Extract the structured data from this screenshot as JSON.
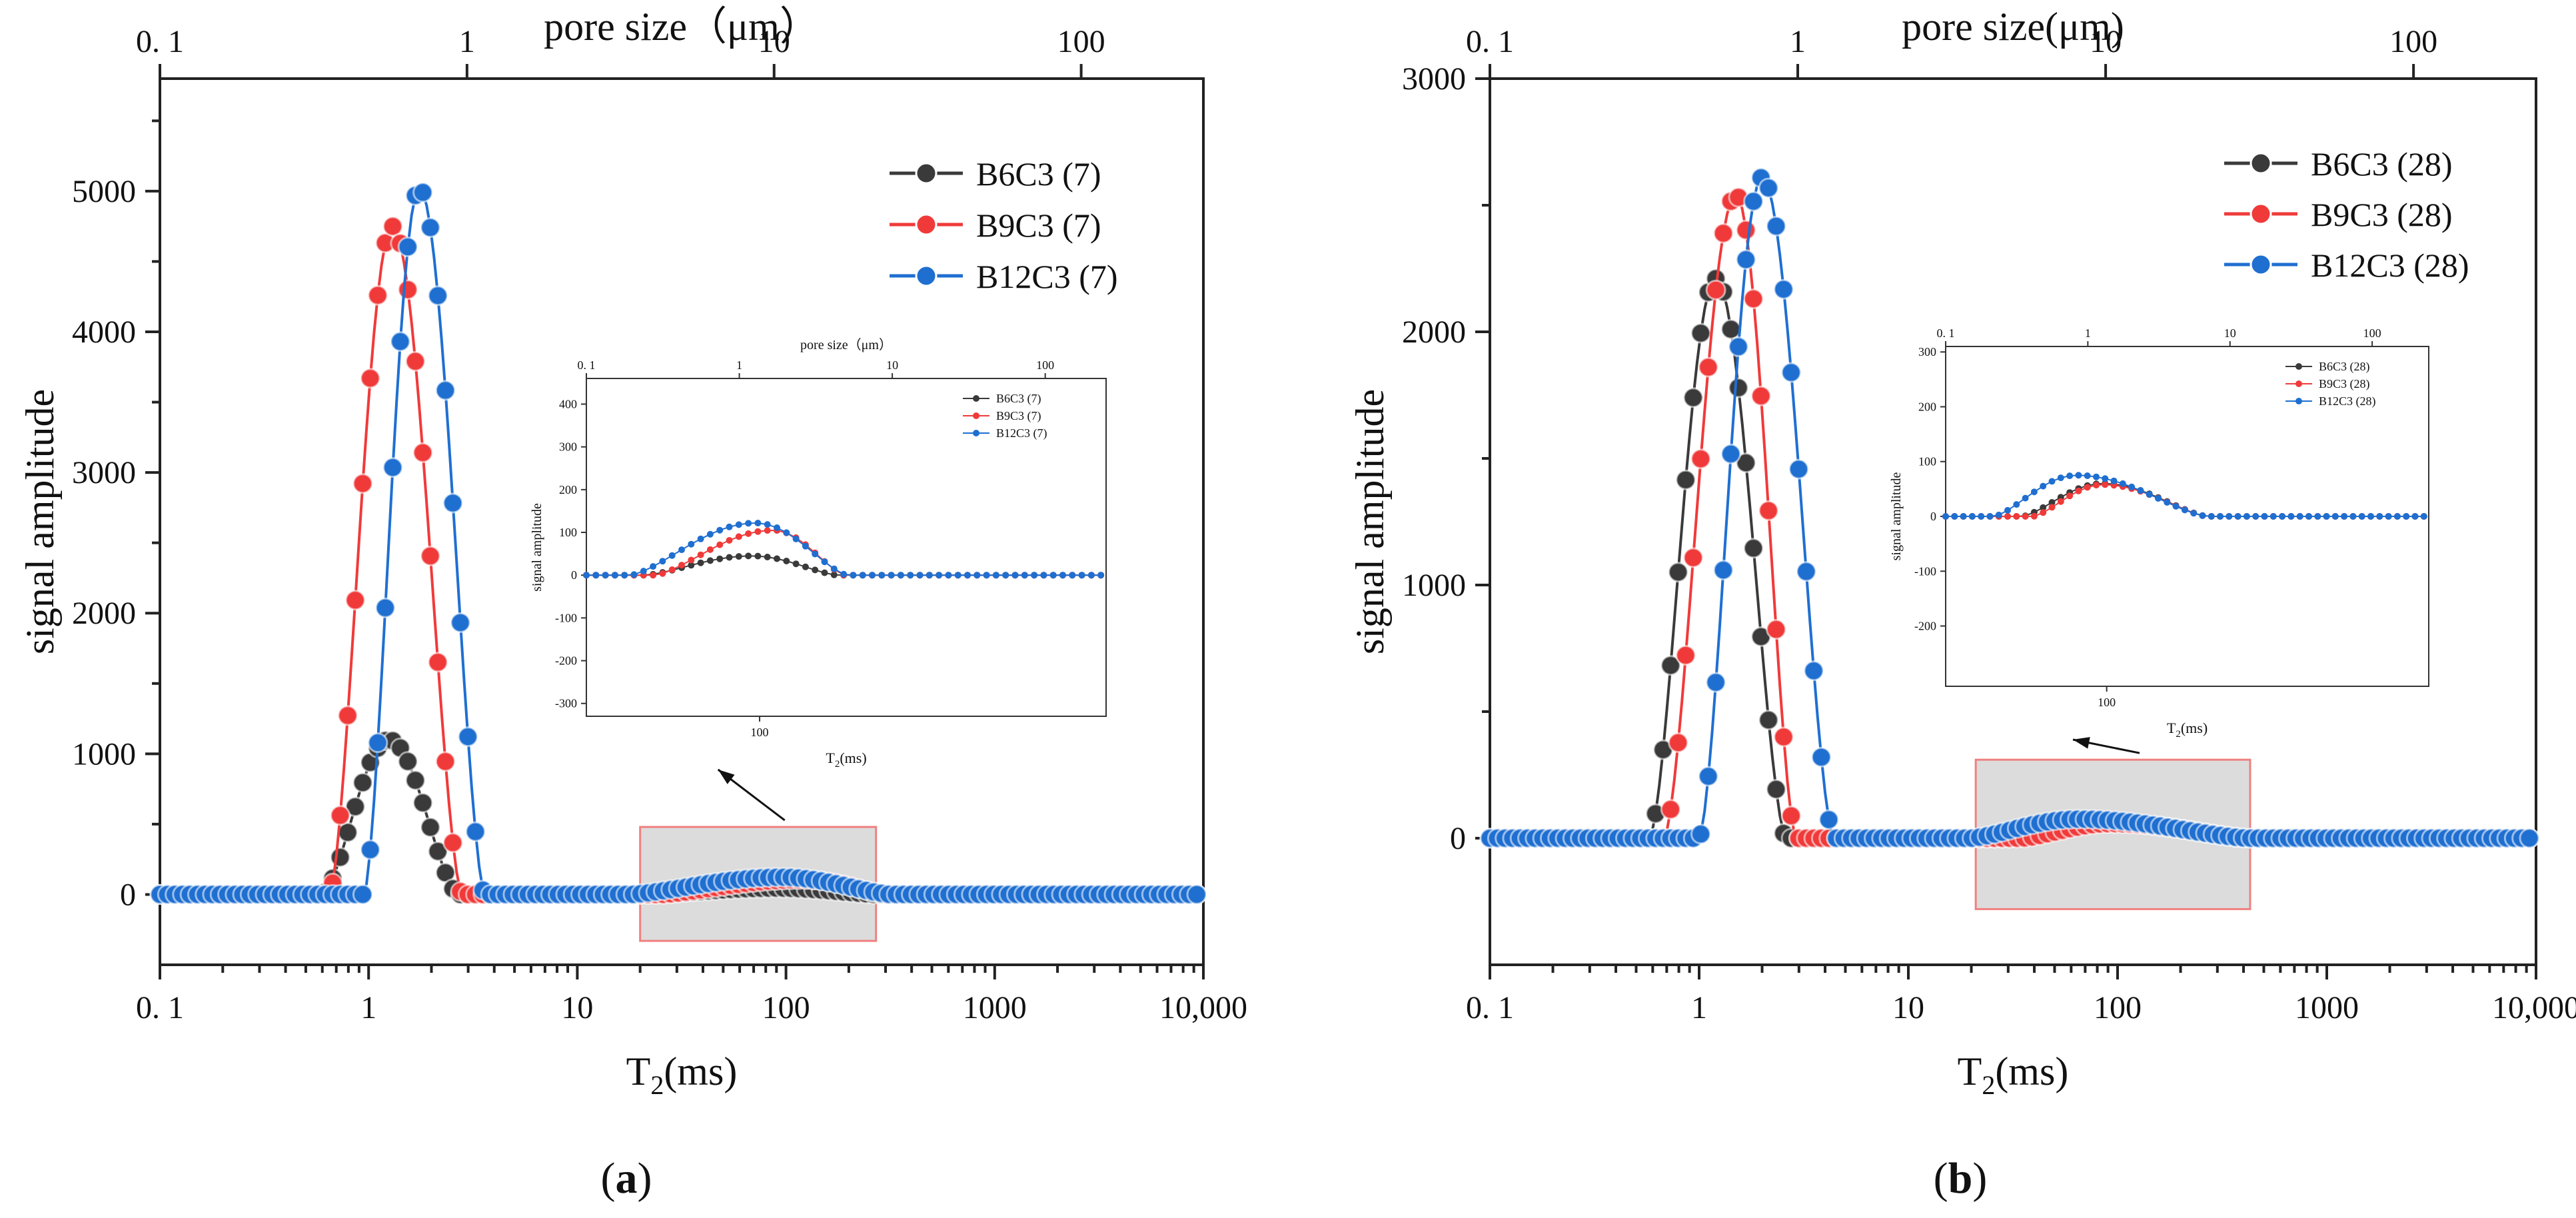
{
  "colors": {
    "B6": "#3a3a3a",
    "B9": "#f03a3a",
    "B12": "#1f6fd1",
    "box_fill": "#dcdcdc",
    "box_stroke": "#f08080"
  },
  "chart_data": [
    {
      "panel": "(a)",
      "panel_label": "a",
      "type": "scatter",
      "title": "",
      "xlabel": "T",
      "xlabel_sub": "2",
      "xlabel_suffix": "(ms)",
      "ylabel": "signal amplitude",
      "top_label": "pore size（μm）",
      "xscale": "log",
      "xlim": [
        0.1,
        10000
      ],
      "ylim": [
        -500,
        5800
      ],
      "top_xlim": [
        0.1,
        250
      ],
      "x_ticks": [
        {
          "value": 0.1,
          "label": "0. 1"
        },
        {
          "value": 1,
          "label": "1"
        },
        {
          "value": 10,
          "label": "10"
        },
        {
          "value": 100,
          "label": "100"
        },
        {
          "value": 1000,
          "label": "1000"
        },
        {
          "value": 10000,
          "label": "10,000"
        }
      ],
      "y_ticks": [
        {
          "value": 0,
          "label": "0"
        },
        {
          "value": 1000,
          "label": "1000"
        },
        {
          "value": 2000,
          "label": "2000"
        },
        {
          "value": 3000,
          "label": "3000"
        },
        {
          "value": 4000,
          "label": "4000"
        },
        {
          "value": 5000,
          "label": "5000"
        }
      ],
      "top_ticks": [
        {
          "value": 0.1,
          "label": "0. 1"
        },
        {
          "value": 1,
          "label": "1"
        },
        {
          "value": 10,
          "label": "10"
        },
        {
          "value": 100,
          "label": "100"
        }
      ],
      "legend_position": "top-right",
      "series": [
        {
          "name": "B6C3 (7)",
          "color_key": "B6",
          "peak_t2": 1.25,
          "peak_amp": 1100,
          "start_t2": 0.6,
          "end_t2": 2.7,
          "tail_peak_t2": 90,
          "tail_amp": 45,
          "tail_start_t2": 22,
          "tail_end_t2": 280
        },
        {
          "name": "B9C3 (7)",
          "color_key": "B9",
          "peak_t2": 1.3,
          "peak_amp": 4750,
          "start_t2": 0.65,
          "end_t2": 2.8,
          "tail_peak_t2": 120,
          "tail_amp": 105,
          "tail_start_t2": 25,
          "tail_end_t2": 310
        },
        {
          "name": "B12C3 (7)",
          "color_key": "B12",
          "peak_t2": 1.75,
          "peak_amp": 5020,
          "start_t2": 0.95,
          "end_t2": 3.6,
          "tail_peak_t2": 95,
          "tail_amp": 122,
          "tail_start_t2": 18,
          "tail_end_t2": 320
        }
      ],
      "zoom_box": {
        "x": [
          20,
          270
        ],
        "y": [
          -330,
          480
        ]
      },
      "inset": {
        "top_label": "pore size（μm）",
        "ylabel": "signal amplitude",
        "xlabel": "T",
        "xlabel_sub": "2",
        "xlabel_suffix": "(ms)",
        "xlim": [
          10,
          10000
        ],
        "ylim": [
          -330,
          460
        ],
        "top_xlim": [
          0.1,
          250
        ],
        "x_ticks": [
          {
            "value": 100,
            "label": "100"
          }
        ],
        "top_ticks": [
          {
            "value": 0.1,
            "label": "0. 1"
          },
          {
            "value": 1,
            "label": "1"
          },
          {
            "value": 10,
            "label": "10"
          },
          {
            "value": 100,
            "label": "100"
          }
        ],
        "y_ticks": [
          {
            "value": -300,
            "label": "-300"
          },
          {
            "value": -200,
            "label": "-200"
          },
          {
            "value": -100,
            "label": "-100"
          },
          {
            "value": 0,
            "label": "0"
          },
          {
            "value": 100,
            "label": "100"
          },
          {
            "value": 200,
            "label": "200"
          },
          {
            "value": 300,
            "label": "300"
          },
          {
            "value": 400,
            "label": "400"
          }
        ]
      }
    },
    {
      "panel": "(b)",
      "panel_label": "b",
      "type": "scatter",
      "title": "",
      "xlabel": "T",
      "xlabel_sub": "2",
      "xlabel_suffix": "(ms)",
      "ylabel": "signal amplitude",
      "top_label": "pore size(μm)",
      "xscale": "log",
      "xlim": [
        0.1,
        10000
      ],
      "ylim": [
        -500,
        3000
      ],
      "top_xlim": [
        0.1,
        250
      ],
      "x_ticks": [
        {
          "value": 0.1,
          "label": "0. 1"
        },
        {
          "value": 1,
          "label": "1"
        },
        {
          "value": 10,
          "label": "10"
        },
        {
          "value": 100,
          "label": "100"
        },
        {
          "value": 1000,
          "label": "1000"
        },
        {
          "value": 10000,
          "label": "10,000"
        }
      ],
      "y_ticks": [
        {
          "value": 0,
          "label": "0"
        },
        {
          "value": 1000,
          "label": "1000"
        },
        {
          "value": 2000,
          "label": "2000"
        },
        {
          "value": 3000,
          "label": "3000"
        }
      ],
      "top_ticks": [
        {
          "value": 0.1,
          "label": "0. 1"
        },
        {
          "value": 1,
          "label": "1"
        },
        {
          "value": 10,
          "label": "10"
        },
        {
          "value": 100,
          "label": "100"
        }
      ],
      "legend_position": "top-right",
      "series": [
        {
          "name": "B6C3 (28)",
          "color_key": "B6",
          "peak_t2": 1.2,
          "peak_amp": 2210,
          "start_t2": 0.58,
          "end_t2": 2.6,
          "tail_peak_t2": 95,
          "tail_amp": 60,
          "tail_start_t2": 30,
          "tail_end_t2": 420
        },
        {
          "name": "B9C3 (28)",
          "color_key": "B9",
          "peak_t2": 1.5,
          "peak_amp": 2540,
          "start_t2": 0.68,
          "end_t2": 2.9,
          "tail_peak_t2": 95,
          "tail_amp": 58,
          "tail_start_t2": 35,
          "tail_end_t2": 420
        },
        {
          "name": "B12C3 (28)",
          "color_key": "B12",
          "peak_t2": 2.0,
          "peak_amp": 2610,
          "start_t2": 1.0,
          "end_t2": 4.4,
          "tail_peak_t2": 65,
          "tail_amp": 75,
          "tail_start_t2": 20,
          "tail_end_t2": 420
        }
      ],
      "zoom_box": {
        "x": [
          21,
          430
        ],
        "y": [
          -280,
          310
        ]
      },
      "inset": {
        "top_label": "",
        "ylabel": "signal amplitude",
        "xlabel": "T",
        "xlabel_sub": "2",
        "xlabel_suffix": "(ms)",
        "xlim": [
          10,
          10000
        ],
        "ylim": [
          -310,
          310
        ],
        "top_xlim": [
          0.1,
          250
        ],
        "x_ticks": [
          {
            "value": 100,
            "label": "100"
          }
        ],
        "top_ticks": [
          {
            "value": 0.1,
            "label": "0. 1"
          },
          {
            "value": 1,
            "label": "1"
          },
          {
            "value": 10,
            "label": "10"
          },
          {
            "value": 100,
            "label": "100"
          }
        ],
        "y_ticks": [
          {
            "value": -200,
            "label": "-200"
          },
          {
            "value": -100,
            "label": "-100"
          },
          {
            "value": 0,
            "label": "0"
          },
          {
            "value": 100,
            "label": "100"
          },
          {
            "value": 200,
            "label": "200"
          },
          {
            "value": 300,
            "label": "300"
          }
        ]
      }
    }
  ]
}
